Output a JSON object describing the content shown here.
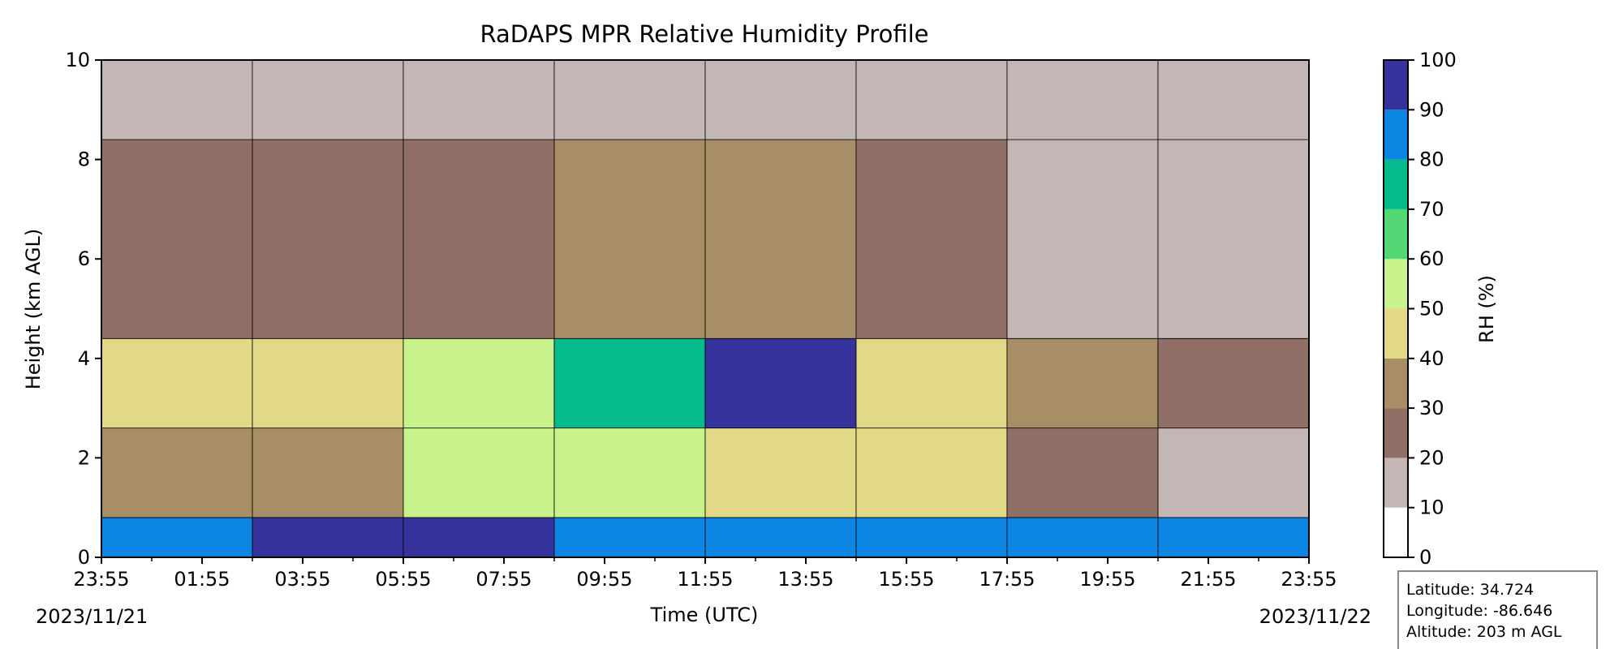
{
  "chart_data": {
    "type": "heatmap",
    "title": "RaDAPS MPR Relative Humidity Profile",
    "xlabel": "Time (UTC)",
    "ylabel": "Height (km AGL)",
    "x_ticks": [
      "23:55",
      "01:55",
      "03:55",
      "05:55",
      "07:55",
      "09:55",
      "11:55",
      "13:55",
      "15:55",
      "17:55",
      "19:55",
      "21:55",
      "23:55"
    ],
    "x_range_hours": [
      0,
      24
    ],
    "start_date": "2023/11/21",
    "end_date": "2023/11/22",
    "y_ticks": [
      "0",
      "2",
      "4",
      "6",
      "8",
      "10"
    ],
    "ylim": [
      0,
      10
    ],
    "colorbar": {
      "label": "RH (%)",
      "ticks": [
        "0",
        "10",
        "20",
        "30",
        "40",
        "50",
        "60",
        "70",
        "80",
        "90",
        "100"
      ],
      "levels": [
        0,
        10,
        20,
        30,
        40,
        50,
        60,
        70,
        80,
        90,
        100
      ],
      "colors": [
        "#ffffff",
        "#c4b6b4",
        "#8f6f66",
        "#a78e66",
        "#e1d888",
        "#c8f28c",
        "#52d975",
        "#05bb8e",
        "#0c85e3",
        "#36349c"
      ]
    },
    "profile_by_period": [
      {
        "period": "00-03",
        "sfc_0_0.5km": 85,
        "km_1_2": 35,
        "km_3_4": 42,
        "km_5_8": 25,
        "km_8_10": 15
      },
      {
        "period": "03-06",
        "sfc_0_0.5km": 92,
        "km_1_2": 35,
        "km_3_4": 40,
        "km_5_8": 25,
        "km_8_10": 15
      },
      {
        "period": "06-09",
        "sfc_0_0.5km": 92,
        "km_1_2": 52,
        "km_3_4": 55,
        "km_5_8": 27,
        "km_8_10": 15
      },
      {
        "period": "09-12",
        "sfc_0_0.5km": 82,
        "km_1_2": 55,
        "km_3_4": 72,
        "km_5_8": 33,
        "km_8_10": 15
      },
      {
        "period": "12-15",
        "sfc_0_0.5km": 88,
        "km_1_2": 45,
        "km_3_4": 90,
        "km_5_8": 32,
        "km_8_10": 15
      },
      {
        "period": "15-18",
        "sfc_0_0.5km": 88,
        "km_1_2": 45,
        "km_3_4": 45,
        "km_5_8": 25,
        "km_8_10": 14
      },
      {
        "period": "18-21",
        "sfc_0_0.5km": 82,
        "km_1_2": 20,
        "km_3_4": 32,
        "km_5_8": 15,
        "km_8_10": 12
      },
      {
        "period": "21-24",
        "sfc_0_0.5km": 80,
        "km_1_2": 10,
        "km_3_4": 22,
        "km_5_8": 18,
        "km_8_10": 15
      }
    ]
  },
  "infobox": {
    "latitude": "Latitude: 34.724",
    "longitude": "Longitude: -86.646",
    "altitude": "Altitude: 203 m AGL"
  }
}
